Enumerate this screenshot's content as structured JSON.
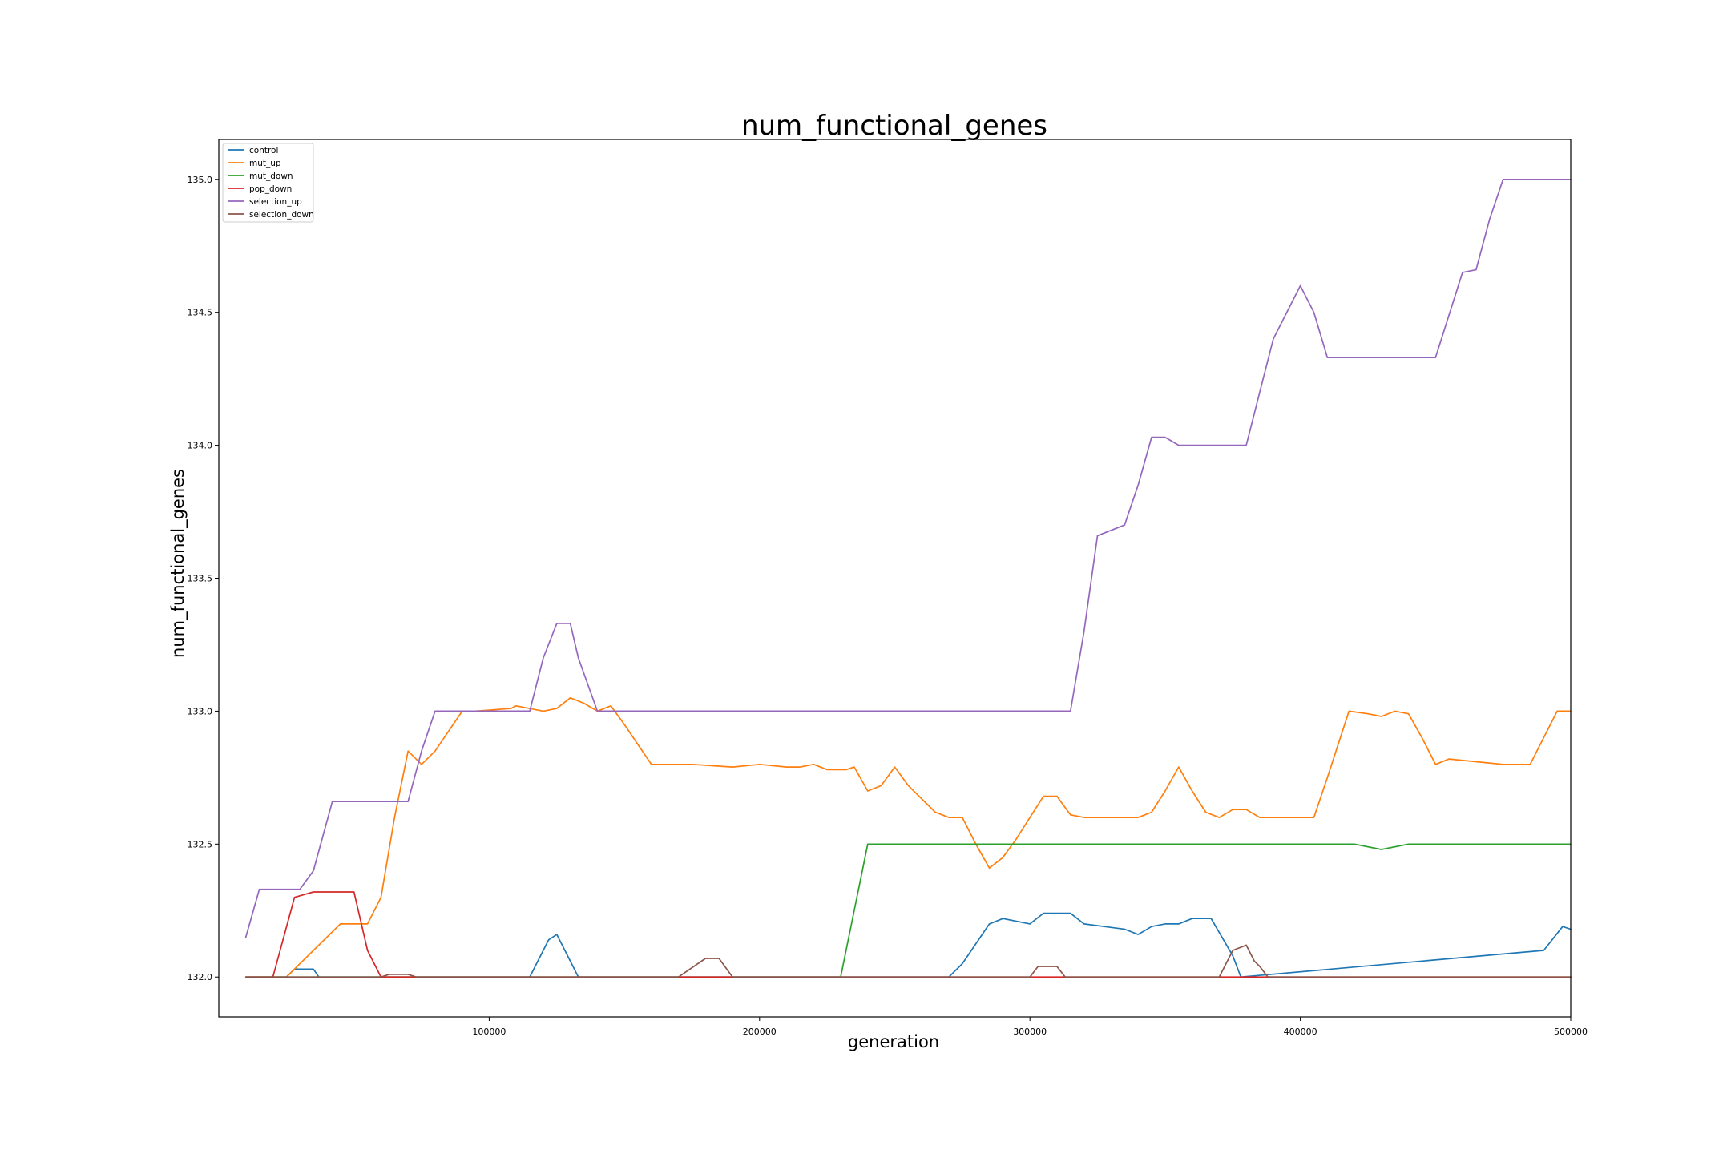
{
  "chart_data": {
    "type": "line",
    "title": "num_functional_genes",
    "xlabel": "generation",
    "ylabel": "num_functional_genes",
    "xlim": [
      0,
      500000
    ],
    "ylim": [
      131.85,
      135.15
    ],
    "xticks": [
      100000,
      200000,
      300000,
      400000,
      500000
    ],
    "xtick_labels": [
      "100000",
      "200000",
      "300000",
      "400000",
      "500000"
    ],
    "yticks": [
      132.0,
      132.5,
      133.0,
      133.5,
      134.0,
      134.5,
      135.0
    ],
    "ytick_labels": [
      "132.0",
      "132.5",
      "133.0",
      "133.5",
      "134.0",
      "134.5",
      "135.0"
    ],
    "grid": false,
    "legend_position": "upper-left",
    "series": [
      {
        "name": "control",
        "color": "#1f77b4",
        "x": [
          10000,
          25000,
          28000,
          35000,
          37000,
          115000,
          122000,
          125000,
          130000,
          133000,
          160000,
          270000,
          275000,
          285000,
          290000,
          300000,
          305000,
          315000,
          320000,
          335000,
          340000,
          345000,
          350000,
          355000,
          360000,
          367000,
          375000,
          378000,
          490000,
          497000,
          500000
        ],
        "y": [
          132.0,
          132.0,
          132.03,
          132.03,
          132.0,
          132.0,
          132.14,
          132.16,
          132.06,
          132.0,
          132.0,
          132.0,
          132.05,
          132.2,
          132.22,
          132.2,
          132.24,
          132.24,
          132.2,
          132.18,
          132.16,
          132.19,
          132.2,
          132.2,
          132.22,
          132.22,
          132.08,
          132.0,
          132.1,
          132.19,
          132.18
        ]
      },
      {
        "name": "mut_up",
        "color": "#ff7f0e",
        "x": [
          10000,
          25000,
          35000,
          45000,
          55000,
          60000,
          65000,
          70000,
          75000,
          80000,
          90000,
          95000,
          108000,
          110000,
          120000,
          125000,
          130000,
          135000,
          140000,
          145000,
          150000,
          160000,
          175000,
          190000,
          200000,
          210000,
          215000,
          220000,
          225000,
          232000,
          235000,
          240000,
          245000,
          250000,
          255000,
          260000,
          265000,
          270000,
          275000,
          280000,
          285000,
          290000,
          295000,
          300000,
          305000,
          310000,
          315000,
          320000,
          330000,
          340000,
          345000,
          350000,
          355000,
          360000,
          365000,
          370000,
          375000,
          380000,
          385000,
          395000,
          405000,
          410000,
          418000,
          425000,
          430000,
          435000,
          440000,
          445000,
          450000,
          455000,
          465000,
          475000,
          485000,
          495000,
          500000
        ],
        "y": [
          132.0,
          132.0,
          132.1,
          132.2,
          132.2,
          132.3,
          132.6,
          132.85,
          132.8,
          132.85,
          133.0,
          133.0,
          133.01,
          133.02,
          133.0,
          133.01,
          133.05,
          133.03,
          133.0,
          133.02,
          132.95,
          132.8,
          132.8,
          132.79,
          132.8,
          132.79,
          132.79,
          132.8,
          132.78,
          132.78,
          132.79,
          132.7,
          132.72,
          132.79,
          132.72,
          132.67,
          132.62,
          132.6,
          132.6,
          132.5,
          132.41,
          132.45,
          132.52,
          132.6,
          132.68,
          132.68,
          132.61,
          132.6,
          132.6,
          132.6,
          132.62,
          132.7,
          132.79,
          132.7,
          132.62,
          132.6,
          132.63,
          132.63,
          132.6,
          132.6,
          132.6,
          132.75,
          133.0,
          132.99,
          132.98,
          133.0,
          132.99,
          132.9,
          132.8,
          132.82,
          132.81,
          132.8,
          132.8,
          133.0,
          133.0
        ]
      },
      {
        "name": "mut_down",
        "color": "#2ca02c",
        "x": [
          10000,
          230000,
          240000,
          300000,
          330000,
          420000,
          430000,
          440000,
          500000
        ],
        "y": [
          132.0,
          132.0,
          132.5,
          132.5,
          132.5,
          132.5,
          132.48,
          132.5,
          132.5
        ]
      },
      {
        "name": "pop_down",
        "color": "#d62728",
        "x": [
          10000,
          20000,
          28000,
          35000,
          50000,
          55000,
          60000,
          500000
        ],
        "y": [
          132.0,
          132.0,
          132.3,
          132.32,
          132.32,
          132.1,
          132.0,
          132.0
        ]
      },
      {
        "name": "selection_up",
        "color": "#9467bd",
        "x": [
          10000,
          15000,
          25000,
          30000,
          35000,
          42000,
          70000,
          75000,
          80000,
          110000,
          115000,
          120000,
          125000,
          130000,
          133000,
          140000,
          145000,
          200000,
          315000,
          320000,
          325000,
          335000,
          340000,
          345000,
          350000,
          355000,
          360000,
          375000,
          380000,
          385000,
          390000,
          400000,
          405000,
          410000,
          415000,
          425000,
          450000,
          460000,
          465000,
          470000,
          475000,
          500000
        ],
        "y": [
          132.15,
          132.33,
          132.33,
          132.33,
          132.4,
          132.66,
          132.66,
          132.85,
          133.0,
          133.0,
          133.0,
          133.2,
          133.33,
          133.33,
          133.2,
          133.0,
          133.0,
          133.0,
          133.0,
          133.3,
          133.66,
          133.7,
          133.85,
          134.03,
          134.03,
          134.0,
          134.0,
          134.0,
          134.0,
          134.2,
          134.4,
          134.6,
          134.5,
          134.33,
          134.33,
          134.33,
          134.33,
          134.65,
          134.66,
          134.85,
          135.0,
          135.0
        ]
      },
      {
        "name": "selection_down",
        "color": "#8c564b",
        "x": [
          10000,
          60000,
          63000,
          70000,
          73000,
          170000,
          180000,
          185000,
          190000,
          300000,
          303000,
          310000,
          313000,
          370000,
          375000,
          380000,
          383000,
          385000,
          388000,
          500000
        ],
        "y": [
          132.0,
          132.0,
          132.01,
          132.01,
          132.0,
          132.0,
          132.07,
          132.07,
          132.0,
          132.0,
          132.04,
          132.04,
          132.0,
          132.0,
          132.1,
          132.12,
          132.06,
          132.04,
          132.0,
          132.0
        ]
      }
    ]
  }
}
